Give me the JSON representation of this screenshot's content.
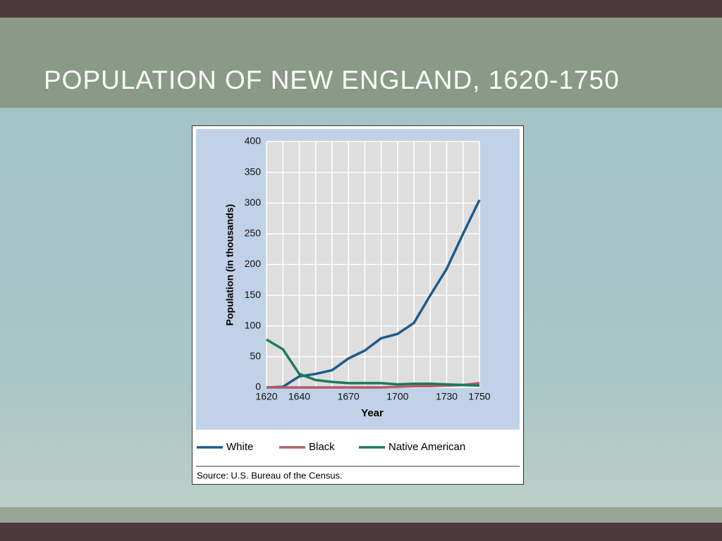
{
  "slide": {
    "title": "POPULATION OF NEW ENGLAND, 1620-1750"
  },
  "chart_data": {
    "type": "line",
    "x": [
      1620,
      1630,
      1640,
      1650,
      1660,
      1670,
      1680,
      1690,
      1700,
      1710,
      1720,
      1730,
      1740,
      1750
    ],
    "series": [
      {
        "name": "White",
        "color": "#1d5b8c",
        "values": [
          0,
          1,
          18,
          22,
          28,
          47,
          60,
          80,
          87,
          105,
          150,
          193,
          250,
          305
        ]
      },
      {
        "name": "Black",
        "color": "#b35d68",
        "values": [
          0,
          0,
          0,
          0,
          0,
          0,
          0,
          0,
          1,
          2,
          2,
          3,
          4,
          7
        ]
      },
      {
        "name": "Native American",
        "color": "#1b7a58",
        "values": [
          78,
          62,
          22,
          12,
          9,
          7,
          7,
          7,
          5,
          6,
          6,
          5,
          4,
          3
        ]
      }
    ],
    "xlim": [
      1620,
      1750
    ],
    "xticks": [
      1620,
      1640,
      1670,
      1700,
      1730,
      1750
    ],
    "ylim": [
      0,
      400
    ],
    "yticks": [
      0,
      50,
      100,
      150,
      200,
      250,
      300,
      350,
      400
    ],
    "xlabel": "Year",
    "ylabel": "Population (in thousands)",
    "grid": true,
    "source": "Source: U.S. Bureau of the Census."
  }
}
